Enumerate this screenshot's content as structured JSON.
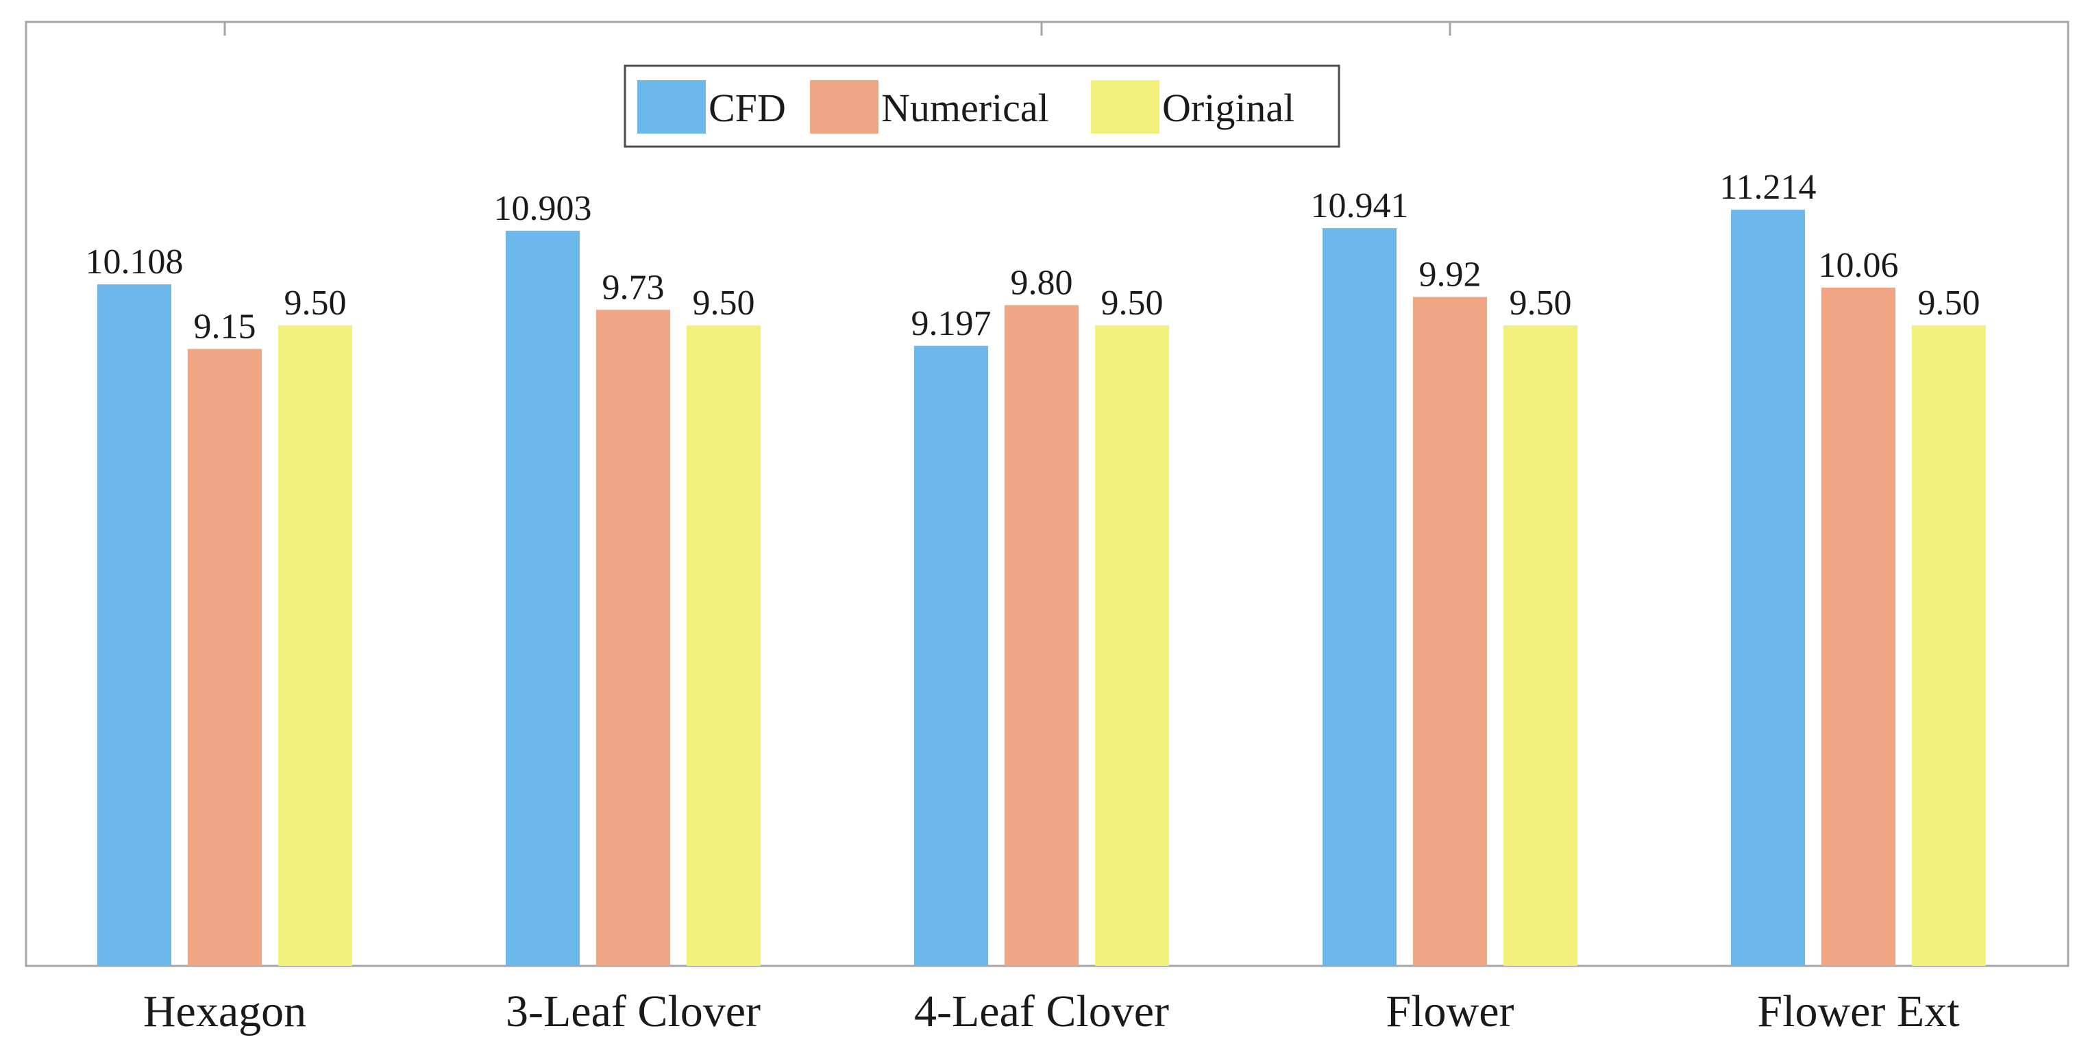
{
  "chart_data": {
    "type": "bar",
    "title": "",
    "xlabel": "",
    "ylabel": "",
    "ylim": [
      0,
      14
    ],
    "grid": false,
    "legend_position": "top-center",
    "categories": [
      "Hexagon",
      "3-Leaf Clover",
      "4-Leaf Clover",
      "Flower",
      "Flower Ext"
    ],
    "series": [
      {
        "name": "CFD",
        "color": "#6cb8ed",
        "values": [
          10.108,
          10.903,
          9.197,
          10.941,
          11.214
        ],
        "labels": [
          "10.108",
          "10.903",
          "9.197",
          "10.941",
          "11.214"
        ]
      },
      {
        "name": "Numerical",
        "color": "#f0a585",
        "values": [
          9.15,
          9.73,
          9.8,
          9.92,
          10.06
        ],
        "labels": [
          "9.15",
          "9.73",
          "9.80",
          "9.92",
          "10.06"
        ]
      },
      {
        "name": "Original",
        "color": "#f0f07a",
        "values": [
          9.5,
          9.5,
          9.5,
          9.5,
          9.5
        ],
        "labels": [
          "9.50",
          "9.50",
          "9.50",
          "9.50",
          "9.50"
        ]
      }
    ]
  }
}
